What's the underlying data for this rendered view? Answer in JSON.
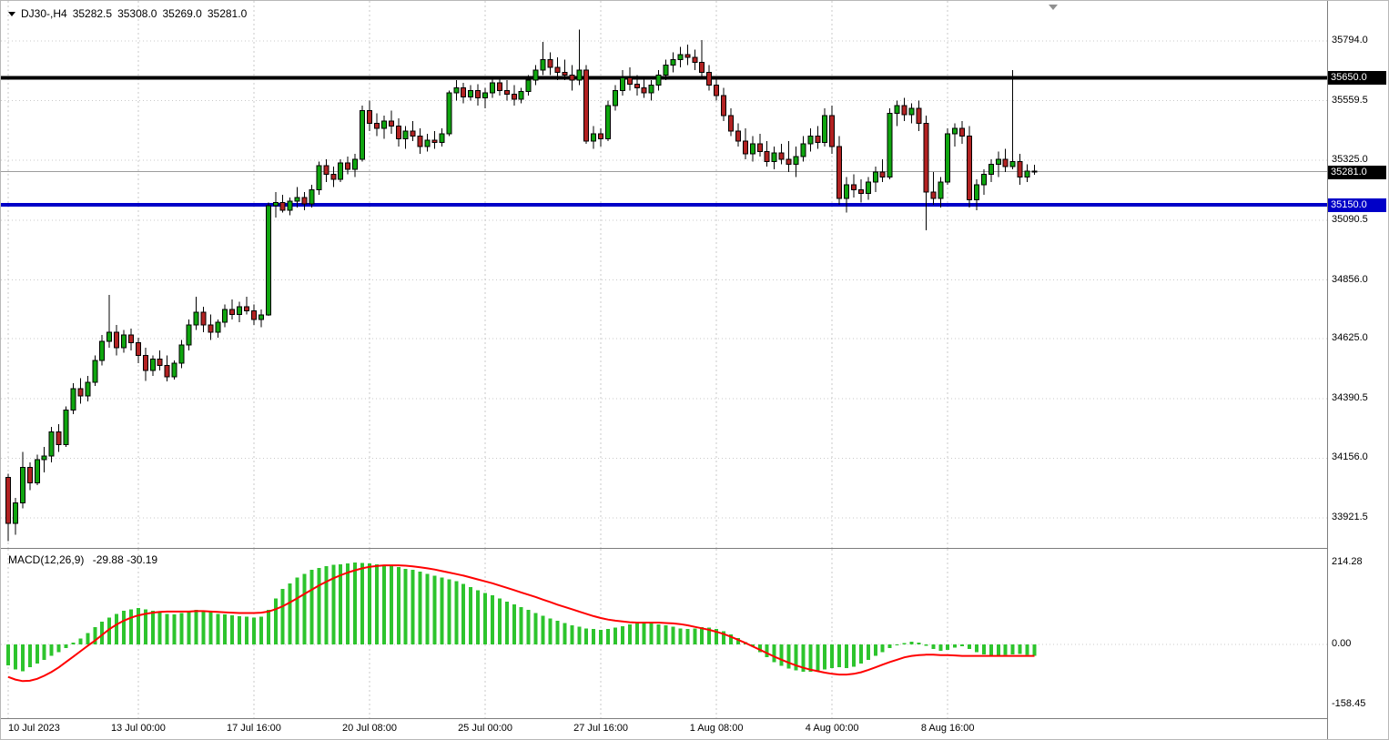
{
  "window": {
    "title": "DJ30-,H4",
    "symbol": "DJ30-",
    "timeframe": "H4",
    "ohlc": {
      "open": "35282.5",
      "high": "35308.0",
      "low": "35269.0",
      "close": "35281.0"
    }
  },
  "indicator": {
    "label": "MACD(12,26,9)",
    "values": "-29.88 -30.19"
  },
  "colors": {
    "bull": "#0FA50F",
    "bear": "#B22222",
    "candle_outline": "#000000",
    "grid": "#C9C9C9",
    "level_black": "#000000",
    "level_blue": "#0000C8",
    "current_price_line": "#9C9C9C",
    "macd_histogram": "#2DC42D",
    "macd_signal": "#FF0000",
    "badge_text": "#FFFFFF"
  },
  "price_axis": {
    "badges": [
      {
        "label": "35650.0",
        "value": 35650.0,
        "style": "black"
      },
      {
        "label": "35281.0",
        "value": 35281.0,
        "style": "black"
      },
      {
        "label": "35150.0",
        "value": 35150.0,
        "style": "blue"
      }
    ]
  },
  "time_axis": {
    "labels": [
      {
        "text": "10 Jul 2023",
        "bar": 0
      },
      {
        "text": "13 Jul 00:00",
        "bar": 18
      },
      {
        "text": "17 Jul 16:00",
        "bar": 34
      },
      {
        "text": "20 Jul 08:00",
        "bar": 50
      },
      {
        "text": "25 Jul 00:00",
        "bar": 66
      },
      {
        "text": "27 Jul 16:00",
        "bar": 82
      },
      {
        "text": "1 Aug 08:00",
        "bar": 98
      },
      {
        "text": "4 Aug 00:00",
        "bar": 114
      },
      {
        "text": "8 Aug 16:00",
        "bar": 130
      }
    ]
  },
  "chart_data": [
    {
      "type": "candlestick",
      "symbol": "DJ30-",
      "timeframe": "H4",
      "ylim": [
        33804,
        35951
      ],
      "y_ticks": [
        35794.0,
        35559.5,
        35325.0,
        35090.5,
        34856.0,
        34625.0,
        34390.5,
        34156.0,
        33921.5
      ],
      "levels": [
        {
          "value": 35650.0,
          "color": "#000000"
        },
        {
          "value": 35150.0,
          "color": "#0000C8"
        }
      ],
      "current_price": 35281.0,
      "candles": [
        [
          34080,
          34095,
          33830,
          33900
        ],
        [
          33900,
          34000,
          33855,
          33980
        ],
        [
          33980,
          34180,
          33960,
          34120
        ],
        [
          34120,
          34140,
          34030,
          34060
        ],
        [
          34060,
          34170,
          34050,
          34150
        ],
        [
          34150,
          34200,
          34100,
          34165
        ],
        [
          34165,
          34280,
          34140,
          34260
        ],
        [
          34260,
          34290,
          34180,
          34210
        ],
        [
          34210,
          34360,
          34200,
          34345
        ],
        [
          34345,
          34450,
          34330,
          34430
        ],
        [
          34430,
          34470,
          34370,
          34400
        ],
        [
          34400,
          34480,
          34380,
          34455
        ],
        [
          34455,
          34560,
          34440,
          34540
        ],
        [
          34540,
          34640,
          34520,
          34615
        ],
        [
          34615,
          34797,
          34590,
          34650
        ],
        [
          34650,
          34680,
          34560,
          34590
        ],
        [
          34590,
          34660,
          34570,
          34640
        ],
        [
          34640,
          34665,
          34580,
          34610
        ],
        [
          34610,
          34630,
          34530,
          34560
        ],
        [
          34560,
          34590,
          34460,
          34500
        ],
        [
          34500,
          34560,
          34480,
          34545
        ],
        [
          34545,
          34580,
          34500,
          34520
        ],
        [
          34520,
          34560,
          34458,
          34475
        ],
        [
          34475,
          34540,
          34465,
          34530
        ],
        [
          34530,
          34620,
          34510,
          34600
        ],
        [
          34600,
          34700,
          34580,
          34680
        ],
        [
          34680,
          34790,
          34660,
          34730
        ],
        [
          34730,
          34750,
          34650,
          34680
        ],
        [
          34680,
          34720,
          34620,
          34650
        ],
        [
          34650,
          34700,
          34630,
          34690
        ],
        [
          34690,
          34760,
          34670,
          34740
        ],
        [
          34740,
          34780,
          34700,
          34720
        ],
        [
          34720,
          34770,
          34690,
          34750
        ],
        [
          34750,
          34790,
          34720,
          34735
        ],
        [
          34735,
          34760,
          34680,
          34700
        ],
        [
          34700,
          34740,
          34670,
          34718
        ],
        [
          34718,
          35160,
          34715,
          35147
        ],
        [
          35147,
          35200,
          35100,
          35160
        ],
        [
          35160,
          35190,
          35120,
          35130
        ],
        [
          35130,
          35180,
          35110,
          35165
        ],
        [
          35165,
          35220,
          35140,
          35180
        ],
        [
          35180,
          35200,
          35130,
          35155
        ],
        [
          35155,
          35230,
          35140,
          35210
        ],
        [
          35210,
          35320,
          35190,
          35305
        ],
        [
          35305,
          35330,
          35240,
          35270
        ],
        [
          35270,
          35300,
          35220,
          35250
        ],
        [
          35250,
          35330,
          35240,
          35315
        ],
        [
          35315,
          35340,
          35270,
          35290
        ],
        [
          35290,
          35350,
          35260,
          35330
        ],
        [
          35330,
          35540,
          35320,
          35520
        ],
        [
          35520,
          35560,
          35440,
          35470
        ],
        [
          35470,
          35510,
          35420,
          35450
        ],
        [
          35450,
          35500,
          35410,
          35480
        ],
        [
          35480,
          35520,
          35430,
          35460
        ],
        [
          35460,
          35490,
          35380,
          35410
        ],
        [
          35410,
          35460,
          35370,
          35440
        ],
        [
          35440,
          35480,
          35400,
          35420
        ],
        [
          35420,
          35450,
          35350,
          35380
        ],
        [
          35380,
          35430,
          35360,
          35405
        ],
        [
          35405,
          35440,
          35370,
          35395
        ],
        [
          35395,
          35450,
          35380,
          35430
        ],
        [
          35430,
          35600,
          35420,
          35590
        ],
        [
          35590,
          35640,
          35560,
          35610
        ],
        [
          35610,
          35630,
          35550,
          35575
        ],
        [
          35575,
          35620,
          35560,
          35600
        ],
        [
          35600,
          35625,
          35540,
          35570
        ],
        [
          35570,
          35610,
          35530,
          35590
        ],
        [
          35590,
          35650,
          35570,
          35630
        ],
        [
          35630,
          35655,
          35580,
          35600
        ],
        [
          35600,
          35640,
          35560,
          35585
        ],
        [
          35585,
          35620,
          35540,
          35565
        ],
        [
          35565,
          35610,
          35550,
          35595
        ],
        [
          35595,
          35660,
          35580,
          35640
        ],
        [
          35640,
          35700,
          35620,
          35680
        ],
        [
          35680,
          35790,
          35660,
          35720
        ],
        [
          35720,
          35750,
          35660,
          35690
        ],
        [
          35690,
          35730,
          35640,
          35670
        ],
        [
          35670,
          35720,
          35640,
          35660
        ],
        [
          35660,
          35700,
          35600,
          35640
        ],
        [
          35640,
          35838,
          35620,
          35680
        ],
        [
          35680,
          35700,
          35390,
          35400
        ],
        [
          35400,
          35460,
          35370,
          35430
        ],
        [
          35430,
          35450,
          35380,
          35410
        ],
        [
          35410,
          35560,
          35400,
          35540
        ],
        [
          35540,
          35620,
          35520,
          35600
        ],
        [
          35600,
          35680,
          35580,
          35650
        ],
        [
          35650,
          35690,
          35600,
          35625
        ],
        [
          35625,
          35660,
          35580,
          35610
        ],
        [
          35610,
          35650,
          35570,
          35590
        ],
        [
          35590,
          35640,
          35560,
          35620
        ],
        [
          35620,
          35680,
          35600,
          35660
        ],
        [
          35660,
          35720,
          35640,
          35700
        ],
        [
          35700,
          35750,
          35670,
          35720
        ],
        [
          35720,
          35770,
          35690,
          35740
        ],
        [
          35740,
          35780,
          35700,
          35730
        ],
        [
          35730,
          35760,
          35680,
          35710
        ],
        [
          35710,
          35797,
          35650,
          35670
        ],
        [
          35670,
          35700,
          35600,
          35620
        ],
        [
          35620,
          35650,
          35560,
          35580
        ],
        [
          35580,
          35610,
          35480,
          35500
        ],
        [
          35500,
          35530,
          35420,
          35440
        ],
        [
          35440,
          35470,
          35380,
          35400
        ],
        [
          35400,
          35450,
          35330,
          35350
        ],
        [
          35350,
          35420,
          35320,
          35390
        ],
        [
          35390,
          35430,
          35340,
          35360
        ],
        [
          35360,
          35400,
          35300,
          35320
        ],
        [
          35320,
          35380,
          35290,
          35355
        ],
        [
          35355,
          35390,
          35310,
          35330
        ],
        [
          35330,
          35400,
          35280,
          35310
        ],
        [
          35310,
          35380,
          35260,
          35340
        ],
        [
          35340,
          35420,
          35320,
          35390
        ],
        [
          35390,
          35450,
          35360,
          35420
        ],
        [
          35420,
          35460,
          35370,
          35395
        ],
        [
          35395,
          35530,
          35380,
          35500
        ],
        [
          35500,
          35540,
          35350,
          35380
        ],
        [
          35380,
          35420,
          35150,
          35175
        ],
        [
          35175,
          35260,
          35120,
          35230
        ],
        [
          35230,
          35270,
          35180,
          35210
        ],
        [
          35210,
          35250,
          35160,
          35195
        ],
        [
          35195,
          35260,
          35170,
          35240
        ],
        [
          35240,
          35300,
          35200,
          35280
        ],
        [
          35280,
          35330,
          35240,
          35260
        ],
        [
          35260,
          35530,
          35250,
          35510
        ],
        [
          35510,
          35560,
          35460,
          35540
        ],
        [
          35540,
          35570,
          35480,
          35505
        ],
        [
          35505,
          35550,
          35470,
          35530
        ],
        [
          35530,
          35560,
          35440,
          35470
        ],
        [
          35470,
          35500,
          35050,
          35200
        ],
        [
          35200,
          35280,
          35150,
          35175
        ],
        [
          35175,
          35260,
          35140,
          35240
        ],
        [
          35240,
          35450,
          35230,
          35430
        ],
        [
          35430,
          35470,
          35380,
          35450
        ],
        [
          35450,
          35480,
          35390,
          35420
        ],
        [
          35420,
          35460,
          35140,
          35170
        ],
        [
          35170,
          35250,
          35130,
          35230
        ],
        [
          35230,
          35290,
          35190,
          35270
        ],
        [
          35270,
          35330,
          35240,
          35310
        ],
        [
          35310,
          35360,
          35260,
          35330
        ],
        [
          35330,
          35370,
          35280,
          35300
        ],
        [
          35300,
          35680,
          35290,
          35320
        ],
        [
          35320,
          35350,
          35230,
          35260
        ],
        [
          35260,
          35310,
          35240,
          35282.5
        ],
        [
          35282.5,
          35308,
          35269,
          35281
        ]
      ]
    },
    {
      "type": "macd",
      "params": "12,26,9",
      "y_ticks": [
        214.28,
        0.0,
        -158.45
      ],
      "ylim": [
        -193,
        250
      ],
      "last_values": [
        -29.88,
        -30.19
      ],
      "histogram": [
        -55,
        -65,
        -70,
        -60,
        -50,
        -40,
        -30,
        -20,
        -10,
        5,
        15,
        30,
        45,
        60,
        70,
        80,
        88,
        92,
        95,
        92,
        88,
        85,
        80,
        78,
        82,
        86,
        90,
        88,
        84,
        80,
        78,
        76,
        74,
        72,
        70,
        72,
        90,
        120,
        145,
        160,
        175,
        185,
        195,
        200,
        205,
        208,
        210,
        212,
        214,
        213,
        212,
        210,
        208,
        205,
        202,
        198,
        195,
        190,
        185,
        180,
        175,
        170,
        165,
        158,
        150,
        142,
        135,
        128,
        120,
        112,
        105,
        98,
        90,
        82,
        75,
        68,
        62,
        56,
        50,
        46,
        42,
        40,
        38,
        40,
        44,
        48,
        52,
        55,
        56,
        55,
        52,
        50,
        46,
        42,
        40,
        42,
        45,
        44,
        40,
        34,
        26,
        16,
        6,
        -6,
        -20,
        -34,
        -46,
        -56,
        -63,
        -68,
        -71,
        -72,
        -70,
        -66,
        -62,
        -60,
        -62,
        -58,
        -50,
        -40,
        -30,
        -20,
        -10,
        -2,
        4,
        7,
        5,
        -4,
        -12,
        -17,
        -14,
        -8,
        -5,
        -12,
        -20,
        -26,
        -29,
        -30,
        -28,
        -26,
        -25,
        -28,
        -29.88
      ],
      "signal": [
        -85,
        -92,
        -96,
        -95,
        -90,
        -82,
        -72,
        -60,
        -46,
        -32,
        -18,
        -4,
        10,
        25,
        40,
        52,
        62,
        70,
        76,
        80,
        83,
        85,
        86,
        86,
        86,
        86,
        87,
        87,
        86,
        85,
        84,
        83,
        82,
        82,
        82,
        83,
        86,
        92,
        100,
        110,
        121,
        132,
        143,
        154,
        164,
        173,
        181,
        188,
        194,
        199,
        203,
        205,
        207,
        207,
        207,
        206,
        204,
        202,
        199,
        196,
        192,
        188,
        184,
        180,
        175,
        170,
        165,
        160,
        154,
        148,
        142,
        136,
        130,
        124,
        117,
        111,
        104,
        98,
        92,
        86,
        80,
        74,
        69,
        65,
        62,
        60,
        58,
        57,
        57,
        57,
        57,
        56,
        55,
        53,
        50,
        46,
        42,
        38,
        33,
        27,
        20,
        12,
        4,
        -5,
        -14,
        -23,
        -32,
        -40,
        -48,
        -55,
        -61,
        -66,
        -70,
        -74,
        -77,
        -79,
        -79,
        -77,
        -73,
        -67,
        -60,
        -53,
        -46,
        -40,
        -34,
        -30,
        -28,
        -27,
        -27,
        -28,
        -28,
        -29,
        -30,
        -30,
        -30,
        -30,
        -30,
        -30,
        -30,
        -30,
        -30,
        -30,
        -30.19
      ]
    }
  ]
}
